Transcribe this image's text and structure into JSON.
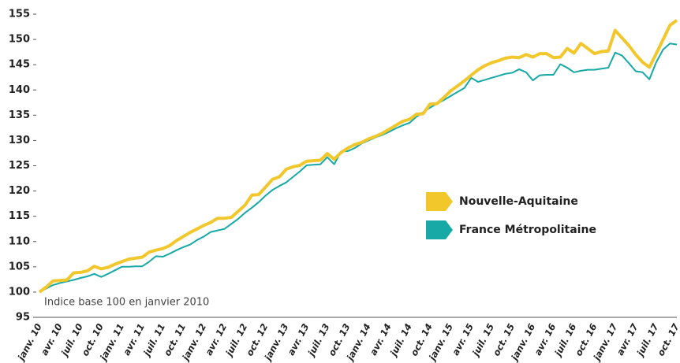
{
  "chart_data": {
    "type": "line",
    "annotation": "Indice base 100 en janvier 2010",
    "categories": [
      "janv. 10",
      null,
      null,
      "avr. 10",
      null,
      null,
      "juil. 10",
      null,
      null,
      "oct. 10",
      null,
      null,
      "janv. 11",
      null,
      null,
      "avr. 11",
      null,
      null,
      "juil. 11",
      null,
      null,
      "oct. 11",
      null,
      null,
      "janv. 12",
      null,
      null,
      "avr. 12",
      null,
      null,
      "juil. 12",
      null,
      null,
      "oct. 12",
      null,
      null,
      "janv. 13",
      null,
      null,
      "avr. 13",
      null,
      null,
      "juil. 13",
      null,
      null,
      "oct. 13",
      null,
      null,
      "janv. 14",
      null,
      null,
      "avr. 14",
      null,
      null,
      "juil. 14",
      null,
      null,
      "oct. 14",
      null,
      null,
      "janv. 15",
      null,
      null,
      "avr. 15",
      null,
      null,
      "juil. 15",
      null,
      null,
      "oct. 15",
      null,
      null,
      "janv. 16",
      null,
      null,
      "avr. 16",
      null,
      null,
      "juil. 16",
      null,
      null,
      "oct. 16",
      null,
      null,
      "janv. 17",
      null,
      null,
      "avr. 17",
      null,
      null,
      "juil. 17",
      null,
      null,
      "oct. 17"
    ],
    "series": [
      {
        "name": "Nouvelle-Aquitaine",
        "color": "#f2c72c",
        "values": [
          100,
          101,
          102.2,
          102.3,
          102.4,
          103.8,
          103.9,
          104.2,
          105.1,
          104.6,
          104.9,
          105.5,
          106,
          106.5,
          106.7,
          106.9,
          107.9,
          108.3,
          108.6,
          109.2,
          110.2,
          111,
          111.8,
          112.5,
          113.2,
          113.8,
          114.6,
          114.6,
          114.8,
          116,
          117.2,
          119.2,
          119.3,
          120.8,
          122.3,
          122.8,
          124.3,
          124.8,
          125.1,
          125.9,
          126,
          126.1,
          127.4,
          126.3,
          127.6,
          128.5,
          129.2,
          129.6,
          130.3,
          130.8,
          131.4,
          132.2,
          133,
          133.8,
          134.2,
          135.2,
          135.3,
          137.2,
          137.3,
          138.5,
          139.8,
          140.8,
          141.8,
          142.9,
          144,
          144.8,
          145.4,
          145.8,
          146.3,
          146.5,
          146.4,
          147,
          146.5,
          147.2,
          147.2,
          146.4,
          146.5,
          148.2,
          147.3,
          149.2,
          148.2,
          147.2,
          147.6,
          147.7,
          151.8,
          150.3,
          148.8,
          147,
          145.5,
          144.5,
          147.2,
          150,
          152.8,
          153.8
        ]
      },
      {
        "name": "France Métropolitaine",
        "color": "#17a9a6",
        "values": [
          100,
          100.7,
          101.4,
          101.8,
          102.1,
          102.4,
          102.8,
          103.1,
          103.6,
          103,
          103.6,
          104.3,
          105,
          105,
          105.1,
          105.1,
          106,
          107.1,
          107,
          107.6,
          108.3,
          108.9,
          109.4,
          110.3,
          111,
          111.9,
          112.2,
          112.5,
          113.5,
          114.5,
          115.7,
          116.7,
          117.8,
          119.1,
          120.2,
          121,
          121.7,
          122.8,
          123.9,
          125.1,
          125.2,
          125.3,
          126.7,
          125.3,
          127.8,
          127.9,
          128.5,
          129.4,
          130,
          130.6,
          131.1,
          131.7,
          132.4,
          133,
          133.5,
          134.7,
          135.6,
          136.5,
          137.3,
          138,
          138.8,
          139.6,
          140.4,
          142.4,
          141.6,
          142,
          142.4,
          142.8,
          143.2,
          143.4,
          144.1,
          143.5,
          141.9,
          142.9,
          143,
          143,
          145.1,
          144.4,
          143.5,
          143.8,
          144,
          144,
          144.2,
          144.4,
          147.4,
          146.8,
          145.3,
          143.7,
          143.5,
          142.1,
          145.5,
          148,
          149.2,
          149
        ]
      }
    ],
    "ylim": [
      95,
      155
    ],
    "yticks": [
      95,
      100,
      105,
      110,
      115,
      120,
      125,
      130,
      135,
      140,
      145,
      150,
      155
    ]
  }
}
